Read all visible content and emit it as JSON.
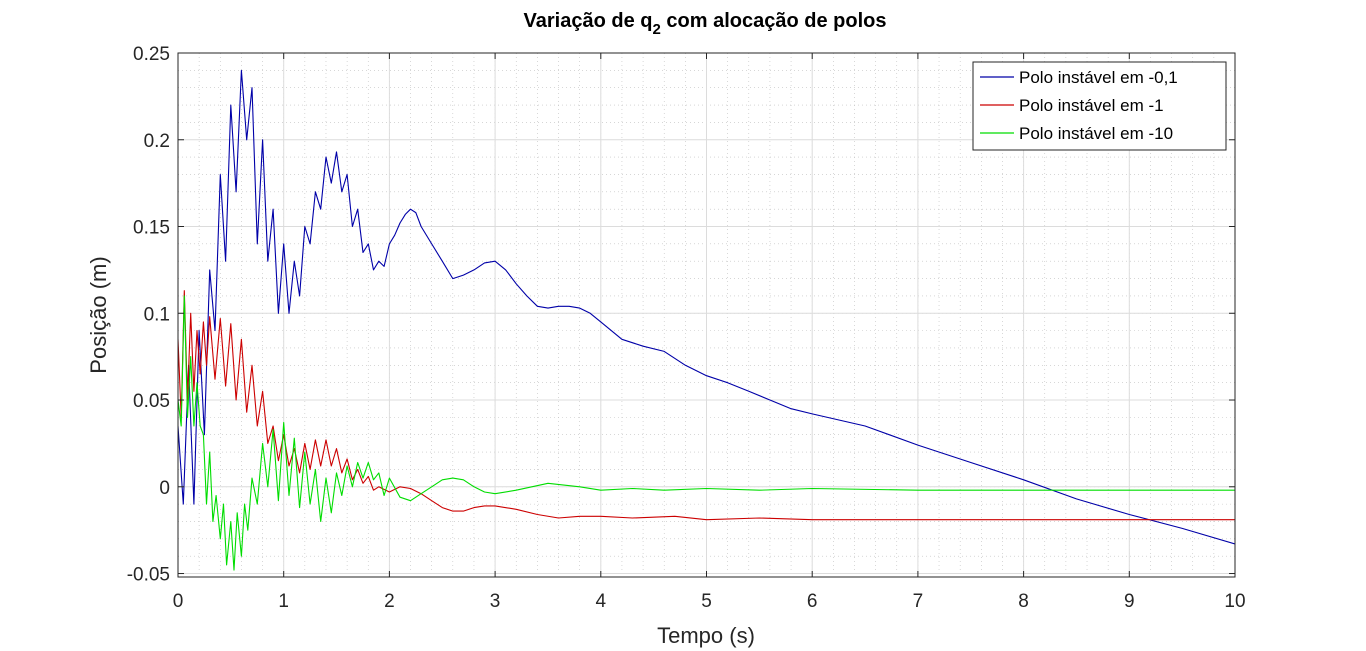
{
  "chart_data": {
    "type": "line",
    "title": {
      "main": "Variação de q",
      "subscript": "2",
      "rest": " com alocação de polos"
    },
    "xlabel": "Tempo (s)",
    "ylabel": "Posição (m)",
    "xlim": [
      0,
      10
    ],
    "ylim": [
      -0.052,
      0.25
    ],
    "xticks": [
      0,
      1,
      2,
      3,
      4,
      5,
      6,
      7,
      8,
      9,
      10
    ],
    "xtick_labels": [
      "0",
      "1",
      "2",
      "3",
      "4",
      "5",
      "6",
      "7",
      "8",
      "9",
      "10"
    ],
    "yticks": [
      -0.05,
      0,
      0.05,
      0.1,
      0.15,
      0.2,
      0.25
    ],
    "ytick_labels": [
      "-0.05",
      "0",
      "0.05",
      "0.1",
      "0.15",
      "0.2",
      "0.25"
    ],
    "grid": true,
    "minor_grid": true,
    "legend_position": "top-right",
    "series": [
      {
        "name": "Polo instável em -0,1",
        "color": "#0000a8",
        "x": [
          0,
          0.05,
          0.1,
          0.15,
          0.2,
          0.25,
          0.3,
          0.35,
          0.4,
          0.45,
          0.5,
          0.55,
          0.6,
          0.65,
          0.7,
          0.75,
          0.8,
          0.85,
          0.9,
          0.95,
          1.0,
          1.05,
          1.1,
          1.15,
          1.2,
          1.25,
          1.3,
          1.35,
          1.4,
          1.45,
          1.5,
          1.55,
          1.6,
          1.65,
          1.7,
          1.75,
          1.8,
          1.85,
          1.9,
          1.95,
          2.0,
          2.05,
          2.1,
          2.15,
          2.2,
          2.25,
          2.3,
          2.4,
          2.5,
          2.6,
          2.7,
          2.8,
          2.9,
          3.0,
          3.1,
          3.2,
          3.3,
          3.4,
          3.5,
          3.6,
          3.7,
          3.8,
          3.9,
          4.0,
          4.2,
          4.4,
          4.6,
          4.8,
          5.0,
          5.2,
          5.4,
          5.6,
          5.8,
          6.0,
          6.5,
          7.0,
          7.5,
          8.0,
          8.5,
          9.0,
          9.5,
          10.0
        ],
        "y": [
          0.035,
          -0.01,
          0.07,
          -0.01,
          0.09,
          0.03,
          0.125,
          0.09,
          0.18,
          0.13,
          0.22,
          0.17,
          0.24,
          0.2,
          0.23,
          0.14,
          0.2,
          0.13,
          0.16,
          0.1,
          0.14,
          0.1,
          0.13,
          0.11,
          0.15,
          0.14,
          0.17,
          0.16,
          0.19,
          0.175,
          0.193,
          0.17,
          0.18,
          0.15,
          0.16,
          0.135,
          0.14,
          0.125,
          0.13,
          0.127,
          0.14,
          0.145,
          0.152,
          0.157,
          0.16,
          0.158,
          0.15,
          0.14,
          0.13,
          0.12,
          0.122,
          0.125,
          0.129,
          0.13,
          0.125,
          0.117,
          0.11,
          0.104,
          0.103,
          0.104,
          0.104,
          0.103,
          0.1,
          0.095,
          0.085,
          0.081,
          0.078,
          0.07,
          0.064,
          0.06,
          0.055,
          0.05,
          0.045,
          0.042,
          0.035,
          0.024,
          0.014,
          0.004,
          -0.007,
          -0.016,
          -0.024,
          -0.033
        ]
      },
      {
        "name": "Polo instável em -1",
        "color": "#cc0000",
        "x": [
          0,
          0.03,
          0.06,
          0.09,
          0.12,
          0.15,
          0.18,
          0.21,
          0.24,
          0.27,
          0.3,
          0.35,
          0.4,
          0.45,
          0.5,
          0.55,
          0.6,
          0.65,
          0.7,
          0.75,
          0.8,
          0.85,
          0.9,
          0.95,
          1.0,
          1.05,
          1.1,
          1.15,
          1.2,
          1.25,
          1.3,
          1.35,
          1.4,
          1.45,
          1.5,
          1.55,
          1.6,
          1.65,
          1.7,
          1.75,
          1.8,
          1.85,
          1.9,
          2.0,
          2.1,
          2.2,
          2.3,
          2.4,
          2.5,
          2.6,
          2.7,
          2.8,
          2.9,
          3.0,
          3.2,
          3.4,
          3.6,
          3.8,
          4.0,
          4.3,
          4.7,
          5.0,
          5.5,
          6.0,
          7.0,
          8.0,
          9.0,
          10.0
        ],
        "y": [
          0.085,
          0.04,
          0.113,
          0.05,
          0.1,
          0.055,
          0.09,
          0.065,
          0.095,
          0.07,
          0.098,
          0.062,
          0.097,
          0.058,
          0.094,
          0.05,
          0.085,
          0.043,
          0.07,
          0.035,
          0.055,
          0.025,
          0.035,
          0.015,
          0.03,
          0.012,
          0.022,
          0.008,
          0.025,
          0.01,
          0.027,
          0.012,
          0.027,
          0.012,
          0.022,
          0.008,
          0.016,
          0.004,
          0.01,
          0.002,
          0.006,
          -0.002,
          0.0,
          -0.003,
          0.0,
          -0.001,
          -0.004,
          -0.008,
          -0.012,
          -0.014,
          -0.014,
          -0.012,
          -0.011,
          -0.011,
          -0.013,
          -0.016,
          -0.018,
          -0.017,
          -0.017,
          -0.018,
          -0.017,
          -0.019,
          -0.018,
          -0.019,
          -0.019,
          -0.019,
          -0.019,
          -0.019
        ]
      },
      {
        "name": "Polo instável em -10",
        "color": "#00dd00",
        "x": [
          0,
          0.03,
          0.06,
          0.09,
          0.12,
          0.15,
          0.18,
          0.21,
          0.24,
          0.27,
          0.3,
          0.33,
          0.36,
          0.4,
          0.43,
          0.46,
          0.5,
          0.53,
          0.56,
          0.6,
          0.63,
          0.66,
          0.7,
          0.75,
          0.8,
          0.85,
          0.9,
          0.95,
          1.0,
          1.05,
          1.1,
          1.15,
          1.2,
          1.25,
          1.3,
          1.35,
          1.4,
          1.45,
          1.5,
          1.55,
          1.6,
          1.65,
          1.7,
          1.75,
          1.8,
          1.85,
          1.9,
          1.95,
          2.0,
          2.1,
          2.2,
          2.3,
          2.4,
          2.5,
          2.6,
          2.7,
          2.8,
          2.9,
          3.0,
          3.2,
          3.5,
          3.8,
          4.0,
          4.3,
          4.6,
          5.0,
          5.5,
          6.0,
          7.0,
          8.0,
          9.0,
          10.0
        ],
        "y": [
          0.05,
          0.035,
          0.11,
          0.04,
          0.075,
          0.035,
          0.06,
          0.035,
          0.03,
          -0.01,
          0.02,
          -0.02,
          -0.005,
          -0.03,
          -0.01,
          -0.045,
          -0.02,
          -0.048,
          -0.015,
          -0.04,
          -0.01,
          -0.025,
          0.005,
          -0.01,
          0.025,
          0.0,
          0.033,
          -0.008,
          0.037,
          -0.005,
          0.028,
          -0.012,
          0.02,
          -0.01,
          0.01,
          -0.02,
          0.005,
          -0.015,
          0.008,
          -0.005,
          0.012,
          0.0,
          0.014,
          0.005,
          0.014,
          0.004,
          0.008,
          -0.005,
          0.005,
          -0.006,
          -0.008,
          -0.004,
          0.0,
          0.004,
          0.005,
          0.004,
          0.0,
          -0.003,
          -0.004,
          -0.002,
          0.002,
          0.0,
          -0.002,
          -0.001,
          -0.002,
          -0.001,
          -0.002,
          -0.001,
          -0.002,
          -0.002,
          -0.002,
          -0.002
        ]
      }
    ]
  }
}
